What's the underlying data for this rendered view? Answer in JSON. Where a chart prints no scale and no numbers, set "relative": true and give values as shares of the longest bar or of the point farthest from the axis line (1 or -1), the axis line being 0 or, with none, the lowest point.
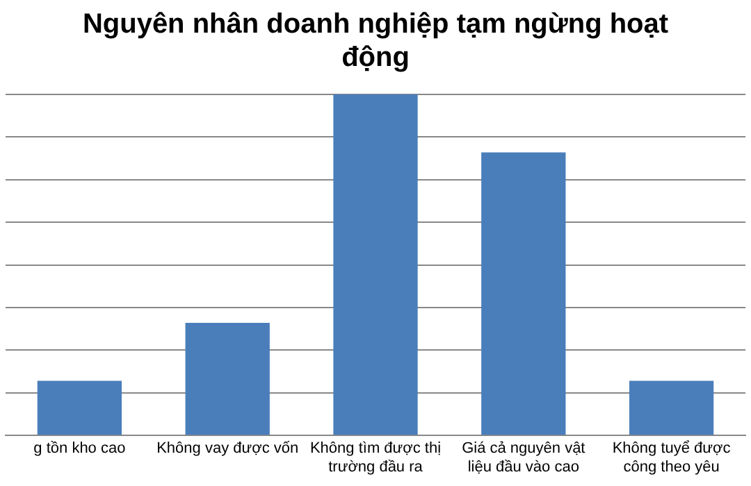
{
  "chart_data": {
    "type": "bar",
    "title": "Nguyên nhân doanh nghiệp tạm ngừng hoạt động",
    "categories": [
      "g tồn kho cao",
      "Không vay được vốn",
      "Không tìm được thị trường đầu ra",
      "Giá cả nguyên vật liệu đầu vào cao",
      "Không tuyể được công theo yêu"
    ],
    "values": [
      0.16,
      0.33,
      1,
      0.83,
      0.16
    ],
    "color": "#4a7ebb",
    "relative": true,
    "grid": "y"
  }
}
